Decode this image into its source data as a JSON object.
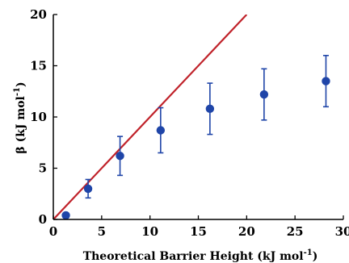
{
  "chart_data": {
    "type": "scatter",
    "xlabel": "Theoretical Barrier Height (kJ mol",
    "xlabel_sup": "-1",
    "xlabel_close": ")",
    "ylabel": "β (kJ mol",
    "ylabel_sup": "-1",
    "ylabel_close": ")",
    "xlim": [
      0,
      30
    ],
    "ylim": [
      0,
      20
    ],
    "xticks": [
      0,
      5,
      10,
      15,
      20,
      25,
      30
    ],
    "yticks": [
      0,
      5,
      10,
      15,
      20
    ],
    "grid": false,
    "series": [
      {
        "type": "scatter",
        "color": "#1f45a8",
        "points": [
          {
            "x": 1.3,
            "y": 0.4,
            "err": 0.0
          },
          {
            "x": 3.6,
            "y": 3.0,
            "err": 0.9
          },
          {
            "x": 6.9,
            "y": 6.2,
            "err": 1.9
          },
          {
            "x": 11.1,
            "y": 8.7,
            "err": 2.2
          },
          {
            "x": 16.2,
            "y": 10.8,
            "err": 2.5
          },
          {
            "x": 21.8,
            "y": 12.2,
            "err": 2.5
          },
          {
            "x": 28.2,
            "y": 13.5,
            "err": 2.5
          }
        ]
      },
      {
        "type": "line",
        "color": "#c0222a",
        "points": [
          {
            "x": 0,
            "y": 0
          },
          {
            "x": 20,
            "y": 20
          }
        ]
      }
    ]
  }
}
